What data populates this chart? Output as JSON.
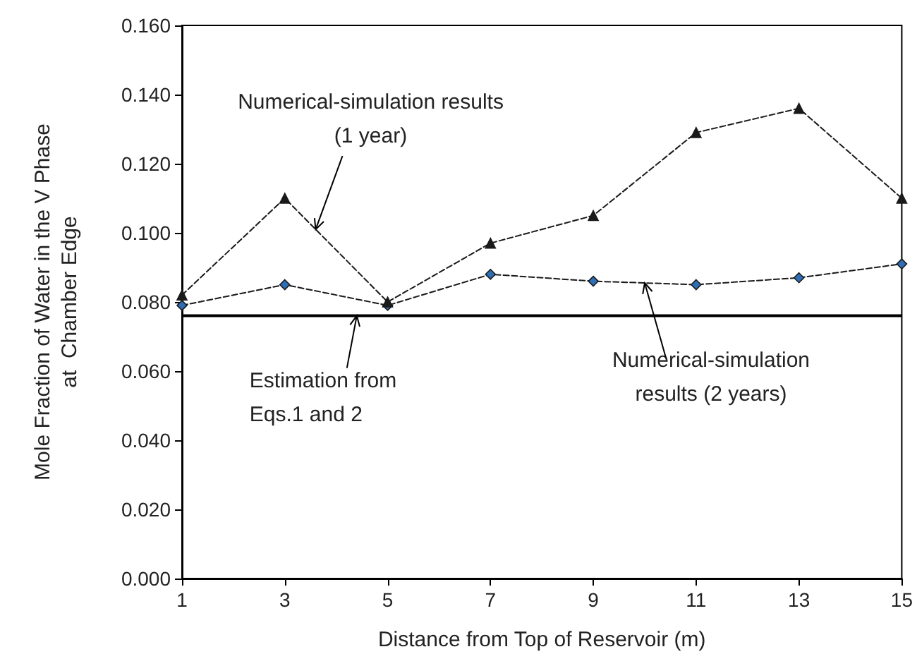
{
  "chart_data": {
    "type": "line",
    "xlabel": "Distance from Top of Reservoir (m)",
    "ylabel": "Mole Fraction of Water in the V Phase\nat  Chamber Edge",
    "x": [
      1,
      3,
      5,
      7,
      9,
      11,
      13,
      15
    ],
    "series": [
      {
        "color": "#1a1a1a",
        "marker": "triangle",
        "values": [
          0.082,
          0.11,
          0.08,
          0.097,
          0.105,
          0.129,
          0.136,
          0.11
        ]
      },
      {
        "color": "#2f6db5",
        "marker": "diamond",
        "values": [
          0.079,
          0.085,
          0.079,
          0.088,
          0.086,
          0.085,
          0.087,
          0.091
        ]
      }
    ],
    "line_style": "dashed",
    "xlim": [
      1,
      15
    ],
    "xticks": [
      1,
      3,
      5,
      7,
      9,
      11,
      13,
      15
    ],
    "ylim": [
      0,
      0.16
    ],
    "yticks": [
      {
        "value": 0,
        "label": "0.000"
      },
      {
        "value": 0.02,
        "label": "0.020"
      },
      {
        "value": 0.04,
        "label": "0.040"
      },
      {
        "value": 0.06,
        "label": "0.060"
      },
      {
        "value": 0.08,
        "label": "0.080"
      },
      {
        "value": 0.1,
        "label": "0.100"
      },
      {
        "value": 0.12,
        "label": "0.120"
      },
      {
        "value": 0.14,
        "label": "0.140"
      },
      {
        "value": 0.16,
        "label": "0.160"
      }
    ],
    "ref_lines": [
      {
        "axis": "y",
        "value": 0.076,
        "color": "#000000",
        "line_style": "solid"
      }
    ],
    "annotations": [
      {
        "text": "Numerical-simulation results\n(1 year)",
        "x": 3.6,
        "y": 0.101
      },
      {
        "text": "Estimation from\nEqs.1 and 2",
        "x": 4.4,
        "y": 0.076
      },
      {
        "text": "Numerical-simulation\nresults (2 years)",
        "x": 10,
        "y": 0.0855
      }
    ]
  }
}
